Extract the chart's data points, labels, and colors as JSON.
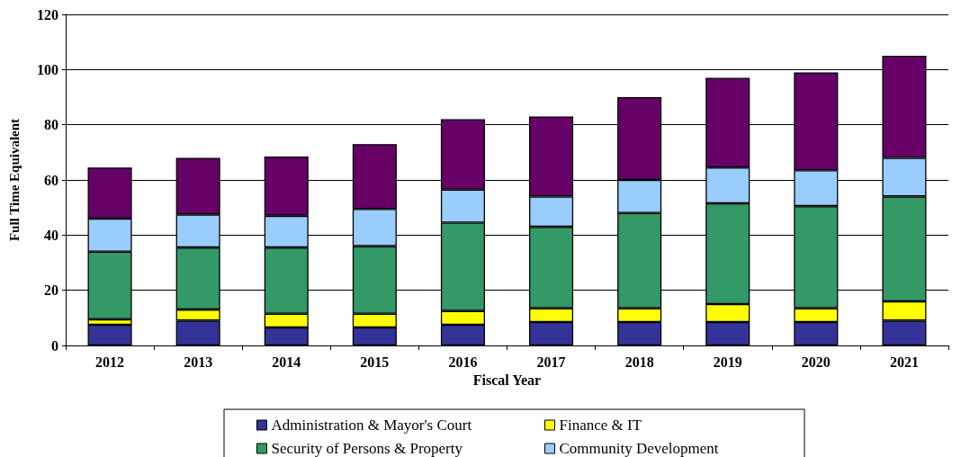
{
  "chart_data": {
    "type": "bar",
    "stacked": true,
    "xlabel": "Fiscal Year",
    "ylabel": "Full Time Equivalent",
    "categories": [
      "2012",
      "2013",
      "2014",
      "2015",
      "2016",
      "2017",
      "2018",
      "2019",
      "2020",
      "2021"
    ],
    "series": [
      {
        "name": "Administration & Mayor's Court",
        "color": "#333399",
        "values": [
          7.5,
          9,
          6.5,
          6.5,
          7.5,
          8.5,
          8.5,
          8.5,
          8.5,
          9
        ]
      },
      {
        "name": "Finance & IT",
        "color": "#ffff00",
        "values": [
          2,
          4,
          5,
          5,
          5,
          5,
          5,
          6.5,
          5,
          7
        ]
      },
      {
        "name": "Security of Persons & Property",
        "color": "#339966",
        "values": [
          24.5,
          22.5,
          24,
          24.5,
          32,
          29.5,
          34.5,
          36.5,
          37,
          38
        ]
      },
      {
        "name": "Community Development",
        "color": "#99ccff",
        "values": [
          12,
          12,
          11.5,
          13.5,
          12,
          11,
          12,
          13,
          13,
          14
        ]
      },
      {
        "color": "#660066",
        "values": [
          18.5,
          20.5,
          21.5,
          23.5,
          25.5,
          29,
          30,
          32.5,
          35.5,
          37
        ]
      }
    ],
    "ylim": [
      0,
      120
    ],
    "yticks": [
      0,
      20,
      40,
      60,
      80,
      100,
      120
    ],
    "grid": "y",
    "legend": "bottom"
  }
}
